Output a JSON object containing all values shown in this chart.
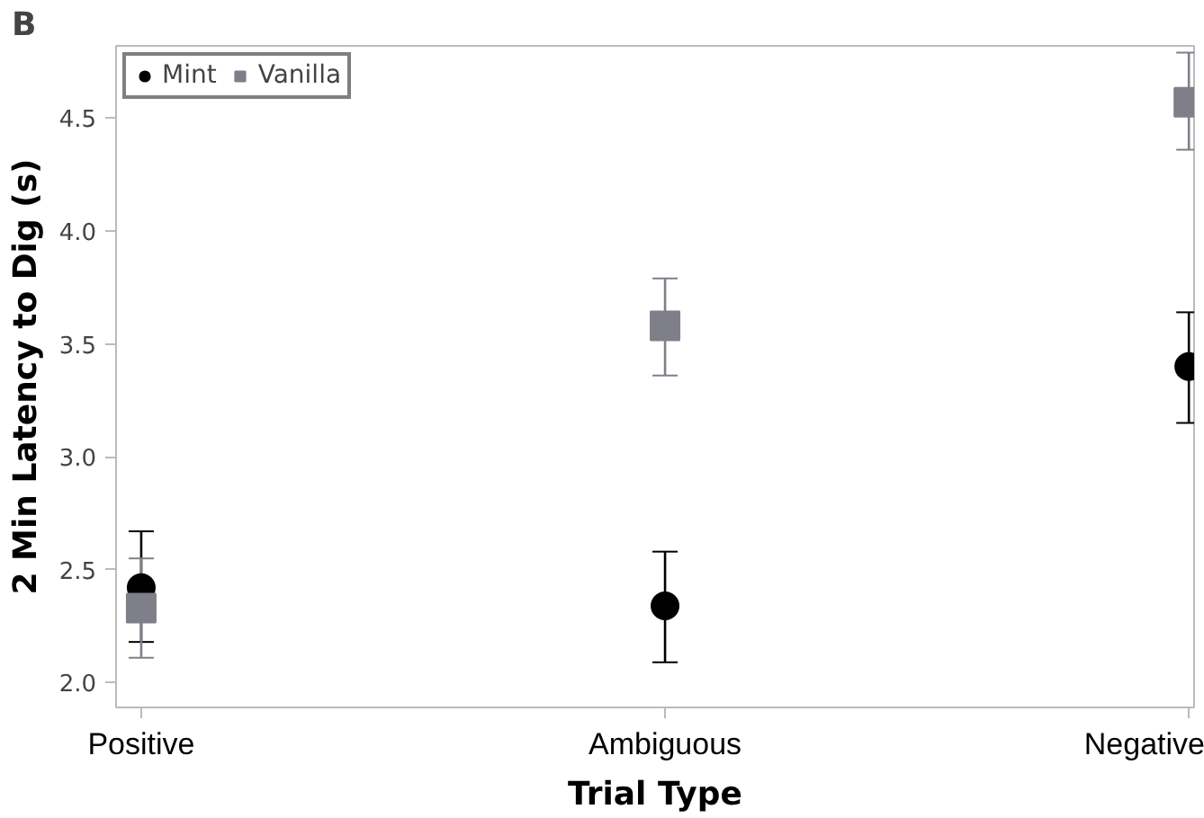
{
  "chart_data": {
    "type": "scatter",
    "xlabel": "Trial Type",
    "ylabel": "2 Min Latency to Dig (s)",
    "annotations": [
      "B"
    ],
    "categories": [
      "Positive",
      "Ambiguous",
      "Negative"
    ],
    "series": [
      {
        "name": "Mint",
        "color": "#000000",
        "marker": "circle",
        "values": [
          2.42,
          2.34,
          3.4
        ],
        "errors": [
          [
            2.18,
            2.67
          ],
          [
            2.09,
            2.58
          ],
          [
            3.15,
            3.64
          ]
        ]
      },
      {
        "name": "Vanilla",
        "color": "#7f7f8a",
        "marker": "square",
        "values": [
          2.33,
          3.58,
          4.57
        ],
        "errors": [
          [
            2.11,
            2.55
          ],
          [
            3.36,
            3.79
          ],
          [
            4.36,
            4.79
          ]
        ]
      }
    ],
    "ylim": [
      1.89,
      4.82
    ],
    "yticks": [
      {
        "value": 2.0,
        "label": "2.0"
      },
      {
        "value": 2.5,
        "label": "2.5"
      },
      {
        "value": 3.0,
        "label": "3.0"
      },
      {
        "value": 3.5,
        "label": "3.5"
      },
      {
        "value": 4.0,
        "label": "4.0"
      },
      {
        "value": 4.5,
        "label": "4.5"
      }
    ],
    "grid": false,
    "legend": "top left"
  }
}
